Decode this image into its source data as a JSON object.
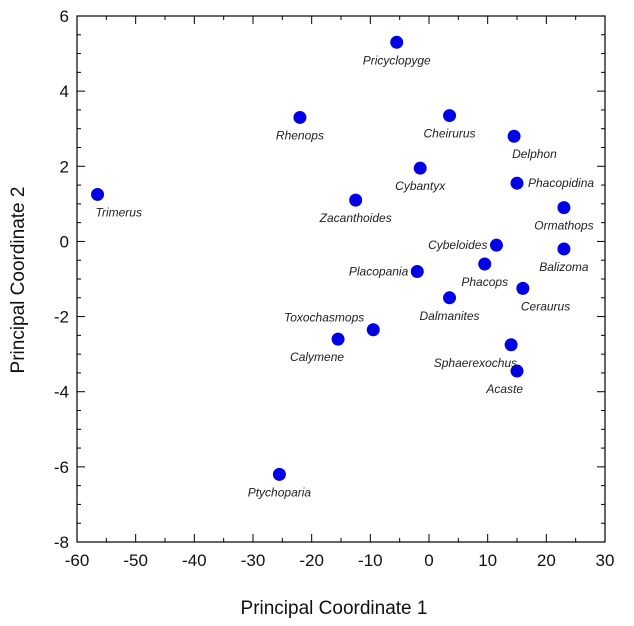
{
  "chart_data": {
    "type": "scatter",
    "xlabel": "Principal Coordinate 1",
    "ylabel": "Principal Coordinate 2",
    "xlim": [
      -60,
      30
    ],
    "ylim": [
      -8,
      6
    ],
    "xticks": [
      "-60",
      "-50",
      "-40",
      "-30",
      "-20",
      "-10",
      "0",
      "10",
      "20",
      "30"
    ],
    "yticks": [
      "6",
      "4",
      "2",
      "0",
      "-2",
      "-4",
      "-6",
      "-8"
    ],
    "grid": false,
    "marker_color": "#0000e6",
    "points": [
      {
        "label": "Pricyclopyge",
        "x": -5.5,
        "y": 5.3,
        "anchor": "below"
      },
      {
        "label": "Rhenops",
        "x": -22,
        "y": 3.3,
        "anchor": "below"
      },
      {
        "label": "Cheirurus",
        "x": 3.5,
        "y": 3.35,
        "anchor": "below"
      },
      {
        "label": "Delphon",
        "x": 14.5,
        "y": 2.8,
        "anchor": "below-right"
      },
      {
        "label": "Cybantyx",
        "x": -1.5,
        "y": 1.95,
        "anchor": "below"
      },
      {
        "label": "Phacopidina",
        "x": 15,
        "y": 1.55,
        "anchor": "right"
      },
      {
        "label": "Trimerus",
        "x": -56.5,
        "y": 1.25,
        "anchor": "below-right"
      },
      {
        "label": "Zacanthoides",
        "x": -12.5,
        "y": 1.1,
        "anchor": "below"
      },
      {
        "label": "Ormathops",
        "x": 23,
        "y": 0.9,
        "anchor": "below"
      },
      {
        "label": "Cybeloides",
        "x": 11.5,
        "y": -0.1,
        "anchor": "left"
      },
      {
        "label": "Balizoma",
        "x": 23,
        "y": -0.2,
        "anchor": "below"
      },
      {
        "label": "Phacops",
        "x": 9.5,
        "y": -0.6,
        "anchor": "below"
      },
      {
        "label": "Placopania",
        "x": -2,
        "y": -0.8,
        "anchor": "left"
      },
      {
        "label": "Ceraurus",
        "x": 16,
        "y": -1.25,
        "anchor": "below-right"
      },
      {
        "label": "Dalmanites",
        "x": 3.5,
        "y": -1.5,
        "anchor": "below"
      },
      {
        "label": "Toxochasmops",
        "x": -9.5,
        "y": -2.35,
        "anchor": "left-above"
      },
      {
        "label": "Calymene",
        "x": -15.5,
        "y": -2.6,
        "anchor": "below-left"
      },
      {
        "label": "Sphaerexochus",
        "x": 14,
        "y": -2.75,
        "anchor": "below-left"
      },
      {
        "label": "Acaste",
        "x": 15,
        "y": -3.45,
        "anchor": "below-left"
      },
      {
        "label": "Ptychoparia",
        "x": -25.5,
        "y": -6.2,
        "anchor": "below"
      }
    ]
  }
}
